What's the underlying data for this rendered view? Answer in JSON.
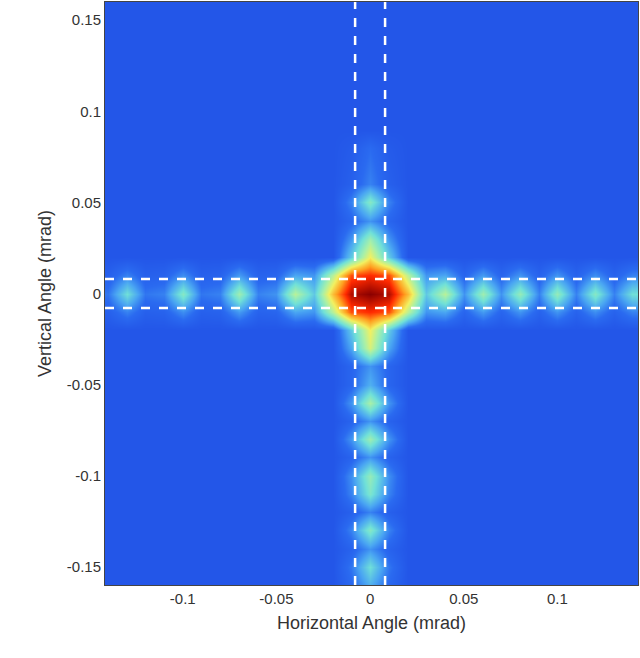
{
  "chart_data": {
    "type": "heatmap",
    "x_label": "Horizontal Angle (mrad)",
    "y_label": "Vertical Angle (mrad)",
    "xlim": [
      -0.1415,
      0.143
    ],
    "ylim": [
      -0.16,
      0.16
    ],
    "xticks": [
      -0.1,
      -0.05,
      0,
      0.05,
      0.1
    ],
    "yticks": [
      -0.15,
      -0.1,
      -0.05,
      0,
      0.05,
      0.1,
      0.15
    ],
    "zlim": [
      0,
      100
    ],
    "guide_lines": {
      "x": [
        -0.008,
        0.008
      ],
      "y": [
        -0.008,
        0.008
      ]
    },
    "x": [
      -0.14,
      -0.13,
      -0.12,
      -0.11,
      -0.1,
      -0.09,
      -0.08,
      -0.07,
      -0.06,
      -0.05,
      -0.04,
      -0.03,
      -0.02,
      -0.01,
      0,
      0.01,
      0.02,
      0.03,
      0.04,
      0.05,
      0.06,
      0.07,
      0.08,
      0.09,
      0.1,
      0.11,
      0.12,
      0.13,
      0.14
    ],
    "y": [
      -0.16,
      -0.15,
      -0.14,
      -0.13,
      -0.12,
      -0.11,
      -0.1,
      -0.09,
      -0.08,
      -0.07,
      -0.06,
      -0.05,
      -0.04,
      -0.03,
      -0.02,
      -0.01,
      0,
      0.01,
      0.02,
      0.03,
      0.04,
      0.05,
      0.06,
      0.07,
      0.08,
      0.09,
      0.1,
      0.11,
      0.12,
      0.13,
      0.14,
      0.15,
      0.16
    ],
    "z": [
      [
        0,
        0,
        0,
        0,
        0,
        0,
        0,
        0,
        0,
        0,
        0,
        0,
        0,
        7,
        20,
        7,
        0,
        0,
        0,
        0,
        0,
        0,
        0,
        0,
        0,
        0,
        0,
        0,
        0
      ],
      [
        0,
        0,
        0,
        0,
        0,
        0,
        0,
        0,
        0,
        0,
        0,
        0,
        0,
        10,
        30,
        10,
        0,
        0,
        0,
        0,
        0,
        0,
        0,
        0,
        0,
        0,
        0,
        0,
        0
      ],
      [
        0,
        0,
        0,
        0,
        0,
        0,
        0,
        0,
        0,
        0,
        0,
        0,
        0,
        5,
        15,
        5,
        0,
        0,
        0,
        0,
        0,
        0,
        0,
        0,
        0,
        0,
        0,
        0,
        0
      ],
      [
        0,
        0,
        0,
        0,
        0,
        0,
        0,
        0,
        0,
        0,
        0,
        0,
        0,
        12,
        35,
        12,
        0,
        0,
        0,
        0,
        0,
        0,
        0,
        0,
        0,
        0,
        0,
        0,
        0
      ],
      [
        0,
        0,
        0,
        0,
        0,
        0,
        0,
        0,
        0,
        0,
        0,
        0,
        0,
        4,
        12,
        4,
        0,
        0,
        0,
        0,
        0,
        0,
        0,
        0,
        0,
        0,
        0,
        0,
        0
      ],
      [
        0,
        0,
        0,
        0,
        0,
        0,
        0,
        0,
        0,
        0,
        0,
        0,
        0,
        12,
        33,
        12,
        0,
        0,
        0,
        0,
        0,
        0,
        0,
        0,
        0,
        0,
        0,
        0,
        0
      ],
      [
        0,
        0,
        0,
        0,
        0,
        0,
        0,
        0,
        0,
        0,
        0,
        0,
        0,
        14,
        38,
        14,
        0,
        0,
        0,
        0,
        0,
        0,
        0,
        0,
        0,
        0,
        0,
        0,
        0
      ],
      [
        0,
        0,
        0,
        0,
        0,
        0,
        0,
        0,
        0,
        0,
        0,
        0,
        0,
        5,
        15,
        5,
        0,
        0,
        0,
        0,
        0,
        0,
        0,
        0,
        0,
        0,
        0,
        0,
        0
      ],
      [
        0,
        0,
        0,
        0,
        0,
        0,
        0,
        0,
        0,
        0,
        0,
        0,
        0,
        15,
        40,
        15,
        0,
        0,
        0,
        0,
        0,
        0,
        0,
        0,
        0,
        0,
        0,
        0,
        0
      ],
      [
        0,
        0,
        0,
        0,
        0,
        0,
        0,
        0,
        0,
        0,
        0,
        0,
        0,
        5,
        15,
        5,
        0,
        0,
        0,
        0,
        0,
        0,
        0,
        0,
        0,
        0,
        0,
        0,
        0
      ],
      [
        0,
        0,
        0,
        0,
        0,
        0,
        0,
        0,
        0,
        0,
        0,
        0,
        0,
        15,
        42,
        15,
        0,
        0,
        0,
        0,
        0,
        0,
        0,
        0,
        0,
        0,
        0,
        0,
        0
      ],
      [
        0,
        0,
        0,
        0,
        0,
        0,
        0,
        0,
        0,
        0,
        0,
        0,
        0,
        6,
        20,
        6,
        0,
        0,
        0,
        0,
        0,
        0,
        0,
        0,
        0,
        0,
        0,
        0,
        0
      ],
      [
        0,
        0,
        0,
        0,
        0,
        0,
        0,
        0,
        0,
        0,
        0,
        0,
        0,
        6,
        15,
        6,
        0,
        0,
        0,
        0,
        0,
        0,
        0,
        0,
        0,
        0,
        0,
        0,
        0
      ],
      [
        0,
        0,
        0,
        0,
        0,
        0,
        0,
        0,
        0,
        0,
        0,
        0,
        0,
        18,
        50,
        18,
        0,
        0,
        0,
        0,
        0,
        0,
        0,
        0,
        0,
        0,
        0,
        0,
        0
      ],
      [
        0,
        0,
        0,
        0,
        0,
        0,
        0,
        0,
        0,
        0,
        0,
        0,
        0,
        25,
        55,
        25,
        0,
        0,
        0,
        0,
        0,
        0,
        0,
        0,
        0,
        0,
        0,
        0,
        0
      ],
      [
        4,
        12,
        4,
        5,
        14,
        4,
        5,
        16,
        5,
        6,
        18,
        15,
        45,
        80,
        85,
        80,
        45,
        15,
        18,
        6,
        16,
        6,
        15,
        5,
        15,
        5,
        14,
        5,
        12
      ],
      [
        10,
        30,
        10,
        12,
        35,
        10,
        12,
        40,
        12,
        15,
        45,
        25,
        65,
        95,
        100,
        95,
        65,
        25,
        45,
        15,
        40,
        15,
        38,
        12,
        38,
        12,
        35,
        12,
        30
      ],
      [
        4,
        12,
        4,
        5,
        14,
        4,
        5,
        16,
        5,
        6,
        18,
        15,
        45,
        80,
        85,
        80,
        45,
        15,
        18,
        6,
        16,
        6,
        15,
        5,
        15,
        5,
        14,
        5,
        12
      ],
      [
        0,
        0,
        0,
        0,
        0,
        0,
        0,
        0,
        0,
        0,
        0,
        0,
        0,
        25,
        55,
        25,
        0,
        0,
        0,
        0,
        0,
        0,
        0,
        0,
        0,
        0,
        0,
        0,
        0
      ],
      [
        0,
        0,
        0,
        0,
        0,
        0,
        0,
        0,
        0,
        0,
        0,
        0,
        0,
        15,
        40,
        15,
        0,
        0,
        0,
        0,
        0,
        0,
        0,
        0,
        0,
        0,
        0,
        0,
        0
      ],
      [
        0,
        0,
        0,
        0,
        0,
        0,
        0,
        0,
        0,
        0,
        0,
        0,
        0,
        6,
        15,
        6,
        0,
        0,
        0,
        0,
        0,
        0,
        0,
        0,
        0,
        0,
        0,
        0,
        0
      ],
      [
        0,
        0,
        0,
        0,
        0,
        0,
        0,
        0,
        0,
        0,
        0,
        0,
        0,
        12,
        35,
        12,
        0,
        0,
        0,
        0,
        0,
        0,
        0,
        0,
        0,
        0,
        0,
        0,
        0
      ],
      [
        0,
        0,
        0,
        0,
        0,
        0,
        0,
        0,
        0,
        0,
        0,
        0,
        0,
        4,
        12,
        4,
        0,
        0,
        0,
        0,
        0,
        0,
        0,
        0,
        0,
        0,
        0,
        0,
        0
      ],
      [
        0,
        0,
        0,
        0,
        0,
        0,
        0,
        0,
        0,
        0,
        0,
        0,
        0,
        3,
        10,
        3,
        0,
        0,
        0,
        0,
        0,
        0,
        0,
        0,
        0,
        0,
        0,
        0,
        0
      ],
      [
        0,
        0,
        0,
        0,
        0,
        0,
        0,
        0,
        0,
        0,
        0,
        0,
        0,
        2,
        8,
        2,
        0,
        0,
        0,
        0,
        0,
        0,
        0,
        0,
        0,
        0,
        0,
        0,
        0
      ],
      [
        0,
        0,
        0,
        0,
        0,
        0,
        0,
        0,
        0,
        0,
        0,
        0,
        0,
        0,
        0,
        0,
        0,
        0,
        0,
        0,
        0,
        0,
        0,
        0,
        0,
        0,
        0,
        0,
        0
      ],
      [
        0,
        0,
        0,
        0,
        0,
        0,
        0,
        0,
        0,
        0,
        0,
        0,
        0,
        0,
        0,
        0,
        0,
        0,
        0,
        0,
        0,
        0,
        0,
        0,
        0,
        0,
        0,
        0,
        0
      ],
      [
        0,
        0,
        0,
        0,
        0,
        0,
        0,
        0,
        0,
        0,
        0,
        0,
        0,
        0,
        0,
        0,
        0,
        0,
        0,
        0,
        0,
        0,
        0,
        0,
        0,
        0,
        0,
        0,
        0
      ],
      [
        0,
        0,
        0,
        0,
        0,
        0,
        0,
        0,
        0,
        0,
        0,
        0,
        0,
        0,
        0,
        0,
        0,
        0,
        0,
        0,
        0,
        0,
        0,
        0,
        0,
        0,
        0,
        0,
        0
      ],
      [
        0,
        0,
        0,
        0,
        0,
        0,
        0,
        0,
        0,
        0,
        0,
        0,
        0,
        0,
        0,
        0,
        0,
        0,
        0,
        0,
        0,
        0,
        0,
        0,
        0,
        0,
        0,
        0,
        0
      ],
      [
        0,
        0,
        0,
        0,
        0,
        0,
        0,
        0,
        0,
        0,
        0,
        0,
        0,
        0,
        0,
        0,
        0,
        0,
        0,
        0,
        0,
        0,
        0,
        0,
        0,
        0,
        0,
        0,
        0
      ],
      [
        0,
        0,
        0,
        0,
        0,
        0,
        0,
        0,
        0,
        0,
        0,
        0,
        0,
        0,
        0,
        0,
        0,
        0,
        0,
        0,
        0,
        0,
        0,
        0,
        0,
        0,
        0,
        0,
        0
      ],
      [
        0,
        0,
        0,
        0,
        0,
        0,
        0,
        0,
        0,
        0,
        0,
        0,
        0,
        0,
        0,
        0,
        0,
        0,
        0,
        0,
        0,
        0,
        0,
        0,
        0,
        0,
        0,
        0,
        0
      ]
    ]
  }
}
